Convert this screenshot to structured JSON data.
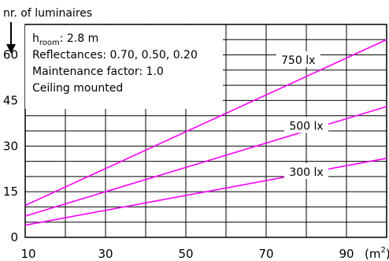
{
  "chart_data": {
    "type": "line",
    "ylabel": "nr. of luminaires",
    "xunit_prefix": "(m",
    "xunit_sup": "2",
    "xunit_suffix": ")",
    "xlim": [
      10,
      100
    ],
    "ylim": [
      0,
      70
    ],
    "x_ticks": [
      10,
      30,
      50,
      70,
      90
    ],
    "y_ticks": [
      0,
      15,
      30,
      45,
      60
    ],
    "grid": true,
    "info_box": {
      "h_main": "h",
      "h_sub": "room",
      "h_value": ": 2.8 m",
      "reflectances": "Reflectances:  0.70, 0.50, 0.20",
      "maintenance": "Maintenance factor:  1.0",
      "mounting": "Ceiling mounted"
    },
    "series": [
      {
        "name": "750 lx",
        "color": "#ff00ff",
        "x": [
          10,
          100
        ],
        "y": [
          10.5,
          65
        ],
        "label_x": 78,
        "label_y": 58.3
      },
      {
        "name": "500 lx",
        "color": "#ff00ff",
        "x": [
          10,
          100
        ],
        "y": [
          7,
          43
        ],
        "label_x": 80,
        "label_y": 36.7
      },
      {
        "name": "300 lx",
        "color": "#ff00ff",
        "x": [
          10,
          100
        ],
        "y": [
          4,
          26
        ],
        "label_x": 80,
        "label_y": 21.5
      }
    ]
  }
}
